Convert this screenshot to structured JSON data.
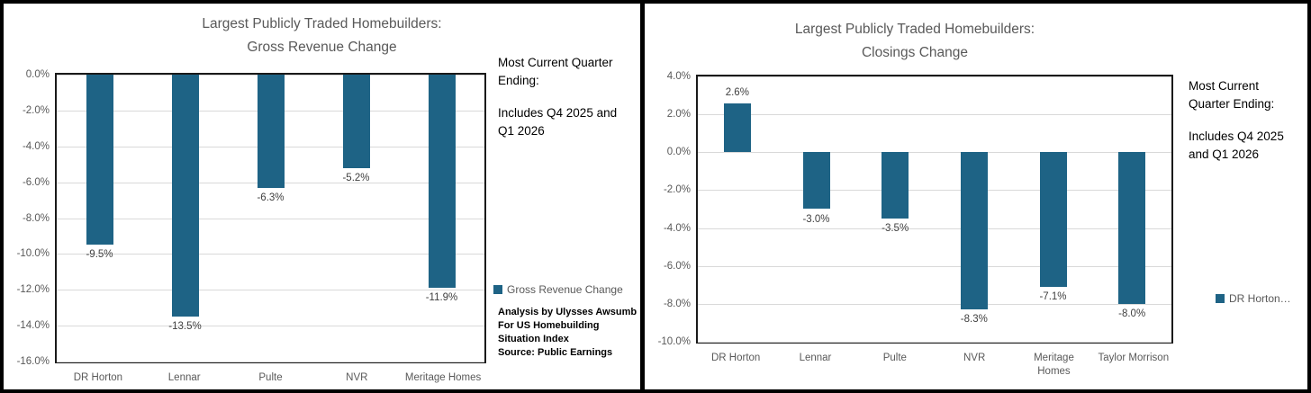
{
  "colors": {
    "bar": "#1E6385",
    "frame_border": "#000000",
    "plot_border": "#1A1A1A",
    "gridline": "#D9D9D9",
    "title_text": "#595959",
    "tick_text": "#595959",
    "data_label_text": "#3F3F3F",
    "legend_text": "#595959",
    "note_text": "#000000",
    "attribution_text": "#000000"
  },
  "chart_data": [
    {
      "type": "bar",
      "title": "Largest Publicly Traded Homebuilders: Gross Revenue Change",
      "title_lines": [
        "Largest Publicly Traded Homebuilders:",
        "Gross Revenue Change"
      ],
      "categories": [
        "DR Horton",
        "Lennar",
        "Pulte",
        "NVR",
        "Meritage Homes"
      ],
      "xtick_lines": [
        [
          "DR Horton"
        ],
        [
          "Lennar"
        ],
        [
          "Pulte"
        ],
        [
          "NVR"
        ],
        [
          "Meritage Homes"
        ]
      ],
      "series": [
        {
          "name": "Gross Revenue Change",
          "values": [
            -9.5,
            -13.5,
            -6.3,
            -5.2,
            -11.9
          ]
        }
      ],
      "values": [
        -9.5,
        -13.5,
        -6.3,
        -5.2,
        -11.9
      ],
      "data_labels": [
        "-9.5%",
        "-13.5%",
        "-6.3%",
        "-5.2%",
        "-11.9%"
      ],
      "xlabel": "",
      "ylabel": "",
      "ylim": [
        -16,
        0
      ],
      "ytick_values": [
        0,
        -2,
        -4,
        -6,
        -8,
        -10,
        -12,
        -14,
        -16
      ],
      "ytick_labels": [
        "0.0%",
        "-2.0%",
        "-4.0%",
        "-6.0%",
        "-8.0%",
        "-10.0%",
        "-12.0%",
        "-14.0%",
        "-16.0%"
      ],
      "grid": true,
      "legend_label": "Gross Revenue Change",
      "legend_position": "right",
      "bar_color": "#1E6385"
    },
    {
      "type": "bar",
      "title": "Largest Publicly Traded Homebuilders: Closings Change",
      "title_lines": [
        "Largest Publicly Traded Homebuilders:",
        "Closings Change"
      ],
      "categories": [
        "DR Horton",
        "Lennar",
        "Pulte",
        "NVR",
        "Meritage Homes",
        "Taylor Morrison"
      ],
      "xtick_lines": [
        [
          "DR Horton"
        ],
        [
          "Lennar"
        ],
        [
          "Pulte"
        ],
        [
          "NVR"
        ],
        [
          "Meritage",
          "Homes"
        ],
        [
          "Taylor Morrison"
        ]
      ],
      "series": [
        {
          "name": "DR Horton…",
          "values": [
            2.6,
            -3.0,
            -3.5,
            -8.3,
            -7.1,
            -8.0
          ]
        }
      ],
      "values": [
        2.6,
        -3.0,
        -3.5,
        -8.3,
        -7.1,
        -8.0
      ],
      "data_labels": [
        "2.6%",
        "-3.0%",
        "-3.5%",
        "-8.3%",
        "-7.1%",
        "-8.0%"
      ],
      "xlabel": "",
      "ylabel": "",
      "ylim": [
        -10,
        4
      ],
      "ytick_values": [
        4,
        2,
        0,
        -2,
        -4,
        -6,
        -8,
        -10
      ],
      "ytick_labels": [
        "4.0%",
        "2.0%",
        "0.0%",
        "-2.0%",
        "-4.0%",
        "-6.0%",
        "-8.0%",
        "-10.0%"
      ],
      "grid": true,
      "legend_label": "DR Horton…",
      "legend_position": "right",
      "bar_color": "#1E6385"
    }
  ],
  "panels": [
    {
      "note_line1": "Most Current Quarter Ending:",
      "note_line2": "Includes Q4 2025 and Q1 2026",
      "attribution": [
        "Analysis by Ulysses Awsumb",
        "For US Homebuilding",
        "Situation Index",
        "Source: Public Earnings"
      ]
    },
    {
      "note_line1": "Most Current Quarter Ending:",
      "note_line2": "Includes Q4 2025 and Q1 2026"
    }
  ]
}
